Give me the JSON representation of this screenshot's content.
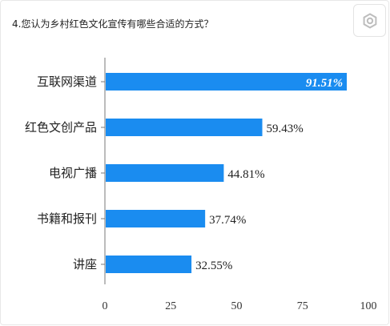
{
  "question": {
    "text": "4.您认为乡村红色文化宣传有哪些合适的方式？"
  },
  "settings": {
    "icon": "gear-icon"
  },
  "chart_data": {
    "type": "bar",
    "orientation": "horizontal",
    "categories": [
      "互联网渠道",
      "红色文创产品",
      "电视广播",
      "书籍和报刊",
      "讲座"
    ],
    "values": [
      91.51,
      59.43,
      44.81,
      37.74,
      32.55
    ],
    "value_labels": [
      "91.51%",
      "59.43%",
      "44.81%",
      "37.74%",
      "32.55%"
    ],
    "xlim": [
      0,
      100
    ],
    "xticks": [
      0,
      25,
      50,
      75,
      100
    ],
    "grid": false,
    "bar_color": "#1a8cf0"
  }
}
